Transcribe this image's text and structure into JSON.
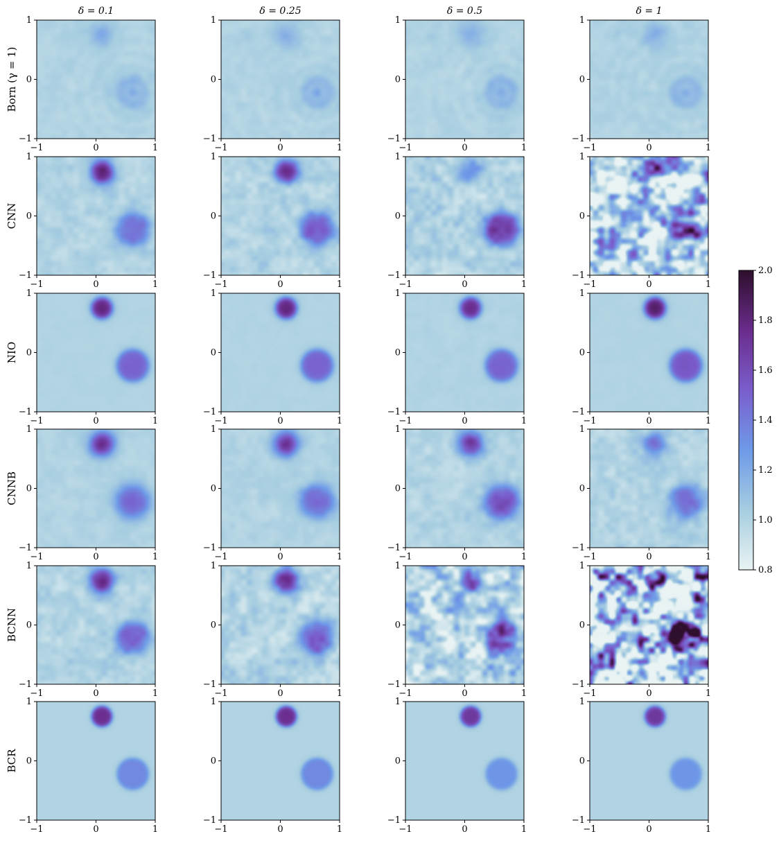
{
  "chart_data": {
    "type": "heatmap",
    "layout": "grid-6x4",
    "column_titles": [
      "δ = 0.1",
      "δ = 0.25",
      "δ = 0.5",
      "δ = 1"
    ],
    "row_labels": [
      "Born (γ = 1)",
      "CNN",
      "NIO",
      "CNNB",
      "BCNN",
      "BCR"
    ],
    "x_ticks": [
      "−1",
      "0",
      "1"
    ],
    "y_ticks": [
      "1",
      "0",
      "−1"
    ],
    "xlim": [
      -1,
      1
    ],
    "ylim": [
      -1,
      1
    ],
    "colorbar": {
      "range": [
        0.8,
        2.0
      ],
      "ticks": [
        "2.0",
        "1.8",
        "1.6",
        "1.4",
        "1.2",
        "1.0",
        "0.8"
      ],
      "tick_values": [
        2.0,
        1.8,
        1.6,
        1.4,
        1.2,
        1.0,
        0.8
      ],
      "colors": [
        "#e9f3f3",
        "#a6cde0",
        "#6e9ae8",
        "#7a5ecc",
        "#6a2c8c",
        "#2e0f2c"
      ]
    },
    "background_value": 1.0,
    "inclusions": {
      "small": {
        "cx": 0.1,
        "cy": 0.75,
        "r": 0.17
      },
      "large": {
        "cx": 0.62,
        "cy": -0.22,
        "r": 0.27
      }
    },
    "panel_values": [
      [
        {
          "small": 1.2,
          "large": 1.18,
          "noise": 0.04,
          "blur": 0.06
        },
        {
          "small": 1.2,
          "large": 1.18,
          "noise": 0.04,
          "blur": 0.06
        },
        {
          "small": 1.2,
          "large": 1.18,
          "noise": 0.04,
          "blur": 0.06
        },
        {
          "small": 1.2,
          "large": 1.18,
          "noise": 0.04,
          "blur": 0.06
        }
      ],
      [
        {
          "small": 1.9,
          "large": 1.45,
          "noise": 0.08,
          "blur": 0.03
        },
        {
          "small": 1.85,
          "large": 1.55,
          "noise": 0.1,
          "blur": 0.03
        },
        {
          "small": 1.3,
          "large": 1.7,
          "noise": 0.14,
          "blur": 0.03
        },
        {
          "small": 1.5,
          "large": 1.6,
          "noise": 0.55,
          "blur": 0.02
        }
      ],
      [
        {
          "small": 1.8,
          "large": 1.5,
          "noise": 0.01,
          "blur": 0.01
        },
        {
          "small": 1.8,
          "large": 1.5,
          "noise": 0.01,
          "blur": 0.01
        },
        {
          "small": 1.75,
          "large": 1.5,
          "noise": 0.02,
          "blur": 0.01
        },
        {
          "small": 1.85,
          "large": 1.55,
          "noise": 0.01,
          "blur": 0.01
        }
      ],
      [
        {
          "small": 1.85,
          "large": 1.5,
          "noise": 0.04,
          "blur": 0.04
        },
        {
          "small": 1.8,
          "large": 1.5,
          "noise": 0.05,
          "blur": 0.04
        },
        {
          "small": 1.75,
          "large": 1.6,
          "noise": 0.08,
          "blur": 0.04
        },
        {
          "small": 1.45,
          "large": 1.45,
          "noise": 0.1,
          "blur": 0.04
        }
      ],
      [
        {
          "small": 1.85,
          "large": 1.5,
          "noise": 0.1,
          "blur": 0.03
        },
        {
          "small": 1.8,
          "large": 1.55,
          "noise": 0.14,
          "blur": 0.03
        },
        {
          "small": 1.5,
          "large": 1.55,
          "noise": 0.35,
          "blur": 0.02
        },
        {
          "small": 1.9,
          "large": 1.9,
          "noise": 0.9,
          "blur": 0.0
        }
      ],
      [
        {
          "small": 1.75,
          "large": 1.35,
          "noise": 0.0,
          "blur": 0.0
        },
        {
          "small": 1.75,
          "large": 1.35,
          "noise": 0.0,
          "blur": 0.0
        },
        {
          "small": 1.7,
          "large": 1.3,
          "noise": 0.0,
          "blur": 0.0
        },
        {
          "small": 1.7,
          "large": 1.3,
          "noise": 0.0,
          "blur": 0.0
        }
      ]
    ]
  }
}
